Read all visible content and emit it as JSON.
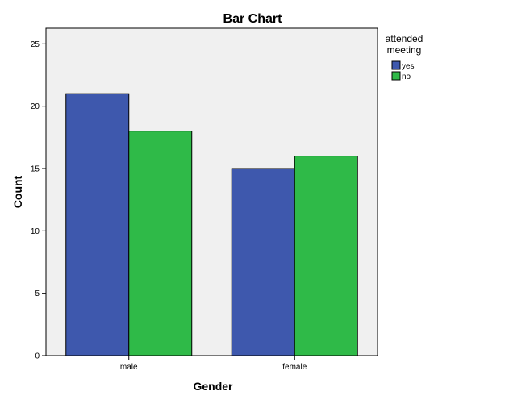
{
  "chart_data": {
    "type": "bar",
    "title": "Bar Chart",
    "xlabel": "Gender",
    "ylabel": "Count",
    "categories": [
      "male",
      "female"
    ],
    "series": [
      {
        "name": "yes",
        "values": [
          21,
          15
        ],
        "color": "#3e58ad"
      },
      {
        "name": "no",
        "values": [
          18,
          16
        ],
        "color": "#2fba48"
      }
    ],
    "ylim": [
      0,
      26.25
    ],
    "yticks": [
      0,
      5,
      10,
      15,
      20,
      25
    ],
    "ytick_labels": [
      "0",
      "5",
      "10",
      "15",
      "20",
      "25"
    ],
    "legend": {
      "title_lines": [
        "attended",
        "meeting"
      ],
      "position": "right"
    },
    "grid": false,
    "plot_background": "#f0f0f0"
  }
}
